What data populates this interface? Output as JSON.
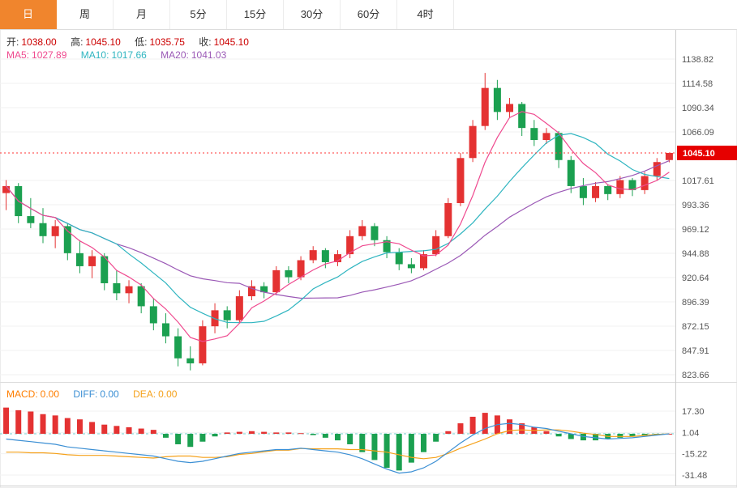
{
  "tabs": {
    "items": [
      "日",
      "周",
      "月",
      "5分",
      "15分",
      "30分",
      "60分",
      "4时"
    ],
    "selected": 0
  },
  "info": {
    "open_label": "开:",
    "open": "1038.00",
    "high_label": "高:",
    "high": "1045.10",
    "low_label": "低:",
    "low": "1035.75",
    "close_label": "收:",
    "close": "1045.10",
    "ma5_label": "MA5:",
    "ma5": "1027.89",
    "ma10_label": "MA10:",
    "ma10": "1017.66",
    "ma20_label": "MA20:",
    "ma20": "1041.03"
  },
  "macd_legend": {
    "macd_label": "MACD:",
    "macd": "0.00",
    "diff_label": "DIFF:",
    "diff": "0.00",
    "dea_label": "DEA:",
    "dea": "0.00"
  },
  "colors": {
    "up": "#e43232",
    "down": "#1ba050",
    "ohlc_value": "#cc0000",
    "ma5": "#ef4a8f",
    "ma10": "#2fb5c0",
    "ma20": "#9b59b6",
    "macd_label": "#ff7e00",
    "diff": "#3b8fd4",
    "dea": "#f5a11a",
    "price_line": "#ff3333",
    "price_badge_bg": "#e60000",
    "price_badge_text": "#ffffff",
    "axis_text": "#555555",
    "grid": "#f2f2f2",
    "frame": "#cccccc",
    "zero_dash": "#6fcfcf",
    "tab_active_bg": "#f0852d"
  },
  "chart_data": {
    "type": "candlestick+macd",
    "title": "K-line daily chart with MA5/MA10/MA20 and MACD",
    "price_ticks": [
      1138.82,
      1114.58,
      1090.34,
      1066.09,
      1017.61,
      993.36,
      969.12,
      944.88,
      920.64,
      896.39,
      872.15,
      847.91,
      823.66
    ],
    "last_price": 1045.1,
    "candles": [
      [
        1005,
        1018,
        988,
        1012
      ],
      [
        1012,
        1015,
        975,
        982
      ],
      [
        982,
        1000,
        970,
        975
      ],
      [
        975,
        990,
        955,
        962
      ],
      [
        962,
        978,
        950,
        972
      ],
      [
        972,
        975,
        938,
        945
      ],
      [
        945,
        958,
        925,
        932
      ],
      [
        932,
        948,
        920,
        942
      ],
      [
        942,
        945,
        908,
        915
      ],
      [
        915,
        928,
        898,
        905
      ],
      [
        905,
        918,
        895,
        912
      ],
      [
        912,
        915,
        885,
        892
      ],
      [
        892,
        900,
        868,
        875
      ],
      [
        875,
        885,
        855,
        862
      ],
      [
        862,
        870,
        832,
        840
      ],
      [
        840,
        852,
        828,
        835
      ],
      [
        835,
        878,
        833,
        872
      ],
      [
        872,
        895,
        865,
        888
      ],
      [
        888,
        892,
        870,
        878
      ],
      [
        878,
        908,
        875,
        902
      ],
      [
        902,
        918,
        898,
        912
      ],
      [
        912,
        916,
        900,
        906
      ],
      [
        906,
        932,
        903,
        928
      ],
      [
        928,
        932,
        915,
        921
      ],
      [
        921,
        942,
        918,
        938
      ],
      [
        938,
        952,
        935,
        948
      ],
      [
        948,
        950,
        930,
        936
      ],
      [
        936,
        948,
        932,
        944
      ],
      [
        944,
        968,
        940,
        962
      ],
      [
        962,
        978,
        958,
        972
      ],
      [
        972,
        975,
        952,
        958
      ],
      [
        958,
        962,
        940,
        946
      ],
      [
        946,
        950,
        928,
        934
      ],
      [
        934,
        940,
        925,
        930
      ],
      [
        930,
        948,
        928,
        944
      ],
      [
        944,
        968,
        942,
        962
      ],
      [
        962,
        1000,
        960,
        995
      ],
      [
        995,
        1045,
        992,
        1040
      ],
      [
        1040,
        1078,
        1036,
        1072
      ],
      [
        1072,
        1125,
        1068,
        1110
      ],
      [
        1110,
        1118,
        1078,
        1086
      ],
      [
        1086,
        1100,
        1080,
        1094
      ],
      [
        1094,
        1096,
        1062,
        1070
      ],
      [
        1070,
        1078,
        1052,
        1058
      ],
      [
        1058,
        1070,
        1054,
        1065
      ],
      [
        1065,
        1067,
        1030,
        1038
      ],
      [
        1038,
        1042,
        1005,
        1012
      ],
      [
        1012,
        1020,
        993,
        1000
      ],
      [
        1000,
        1016,
        996,
        1012
      ],
      [
        1012,
        1014,
        998,
        1004
      ],
      [
        1004,
        1022,
        1000,
        1018
      ],
      [
        1018,
        1020,
        1002,
        1008
      ],
      [
        1008,
        1026,
        1004,
        1022
      ],
      [
        1022,
        1040,
        1018,
        1036
      ],
      [
        1038,
        1045.1,
        1035.75,
        1045.1
      ]
    ],
    "ma_periods": [
      5,
      10,
      20
    ],
    "macd": {
      "axis_ticks": [
        17.3,
        1.04,
        -15.22,
        -31.48
      ],
      "hist": [
        20,
        18,
        17,
        15,
        14,
        12,
        11,
        9,
        7,
        6,
        5,
        4,
        3,
        -3,
        -8,
        -10,
        -6,
        -2,
        1,
        1.5,
        2,
        1.5,
        1,
        1,
        0.5,
        -1,
        -3,
        -5,
        -8,
        -14,
        -20,
        -26,
        -28,
        -22,
        -14,
        -6,
        2,
        8,
        13,
        16,
        14,
        11,
        8,
        5,
        2,
        -2,
        -4,
        -5,
        -5,
        -4,
        -3,
        -2,
        -1.5,
        -1,
        0
      ],
      "diff": [
        -4,
        -5,
        -6,
        -7,
        -8,
        -10,
        -11,
        -12,
        -13,
        -14,
        -15,
        -16,
        -17,
        -19,
        -21,
        -22,
        -21,
        -19,
        -17,
        -15,
        -14,
        -13,
        -12,
        -12,
        -11,
        -12,
        -13,
        -14,
        -16,
        -19,
        -23,
        -27,
        -30,
        -29,
        -26,
        -21,
        -14,
        -7,
        -1,
        4,
        7,
        8,
        7,
        5,
        4,
        2,
        0,
        -2,
        -3,
        -4,
        -3.5,
        -3,
        -2,
        -1,
        0
      ],
      "dea": [
        -14,
        -14,
        -14.5,
        -14.5,
        -15,
        -16,
        -16.5,
        -16.5,
        -16.5,
        -17,
        -17.5,
        -18,
        -18.5,
        -17.5,
        -17,
        -17,
        -18,
        -18,
        -17.5,
        -15.75,
        -15,
        -13.75,
        -12.5,
        -12.5,
        -11.25,
        -11.5,
        -11.5,
        -11.5,
        -12,
        -12,
        -13,
        -14,
        -16,
        -18,
        -19,
        -18,
        -15,
        -11,
        -7.5,
        -4,
        0,
        2.5,
        3,
        2.5,
        3,
        3,
        2,
        0.5,
        -0.5,
        -2,
        -2,
        -2,
        -1.25,
        -0.5,
        0
      ]
    }
  }
}
